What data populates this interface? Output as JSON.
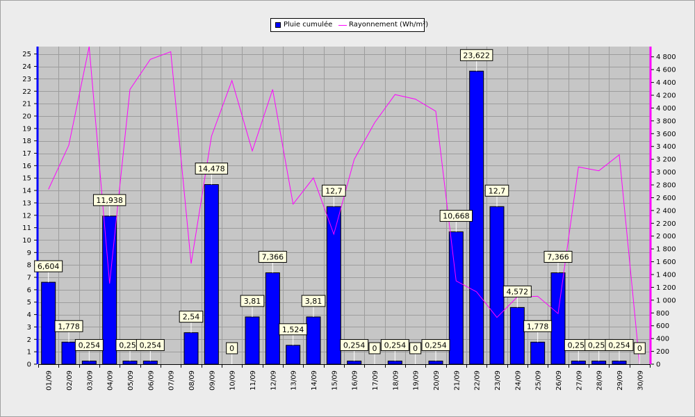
{
  "chart_data": {
    "type": "bar",
    "categories": [
      "01/09",
      "02/09",
      "03/09",
      "04/09",
      "05/09",
      "06/09",
      "07/09",
      "08/09",
      "09/09",
      "10/09",
      "11/09",
      "12/09",
      "13/09",
      "14/09",
      "15/09",
      "16/09",
      "17/09",
      "18/09",
      "19/09",
      "20/09",
      "21/09",
      "22/09",
      "23/09",
      "24/09",
      "25/09",
      "26/09",
      "27/09",
      "28/09",
      "29/09",
      "30/09"
    ],
    "series": [
      {
        "name": "Pluie cumulée",
        "type": "bar",
        "axis": "left",
        "color": "#0000ff",
        "values": [
          6.604,
          1.778,
          0.254,
          11.938,
          0.254,
          0.254,
          0,
          2.54,
          14.478,
          0,
          3.81,
          7.366,
          1.524,
          3.81,
          12.7,
          0.254,
          0,
          0.254,
          0,
          0.254,
          10.668,
          23.622,
          12.7,
          4.572,
          1.778,
          7.366,
          0.254,
          0.254,
          0.254,
          0
        ],
        "labels": [
          "6,604",
          "1,778",
          "0,254",
          "11,938",
          "0,254",
          "0,254",
          "",
          "2,54",
          "14,478",
          "0",
          "3,81",
          "7,366",
          "1,524",
          "3,81",
          "12,7",
          "0,254",
          "0",
          "0,254",
          "0",
          "0,254",
          "10,668",
          "23,622",
          "12,7",
          "4,572",
          "1,778",
          "7,366",
          "0,254",
          "0,254",
          "0,254",
          "0"
        ]
      },
      {
        "name": "Rayonnement (Wh/m²)",
        "type": "line",
        "axis": "right",
        "color": "#ff00ff",
        "values": [
          2730,
          3420,
          4960,
          1260,
          4290,
          4760,
          4880,
          1570,
          3560,
          4430,
          3330,
          4290,
          2500,
          2910,
          2030,
          3200,
          3770,
          4210,
          4140,
          3950,
          1300,
          1130,
          730,
          1050,
          1060,
          790,
          3080,
          3020,
          3270,
          0
        ]
      }
    ],
    "y_left": {
      "min": 0,
      "max": 25.6,
      "ticks": [
        "0",
        "1",
        "2",
        "3",
        "4",
        "5",
        "6",
        "7",
        "8",
        "9",
        "10",
        "11",
        "12",
        "13",
        "14",
        "15",
        "16",
        "17",
        "18",
        "19",
        "20",
        "21",
        "22",
        "23",
        "24",
        "25"
      ]
    },
    "y_right": {
      "min": 0,
      "max": 4960,
      "ticks": [
        "0",
        "200",
        "400",
        "600",
        "800",
        "1 000",
        "1 200",
        "1 400",
        "1 600",
        "1 800",
        "2 000",
        "2 200",
        "2 400",
        "2 600",
        "2 800",
        "3 000",
        "3 200",
        "3 400",
        "3 600",
        "3 800",
        "4 000",
        "4 200",
        "4 400",
        "4 600",
        "4 800"
      ]
    },
    "grid": true,
    "legend_position": "top-center",
    "colors": {
      "background": "#ececec",
      "plot_bg": "#c6c6c6",
      "grid": "#9c9c9c",
      "left_axis": "#0000ff",
      "right_axis": "#ff00ff",
      "label_bg": "#ffffe0"
    }
  }
}
